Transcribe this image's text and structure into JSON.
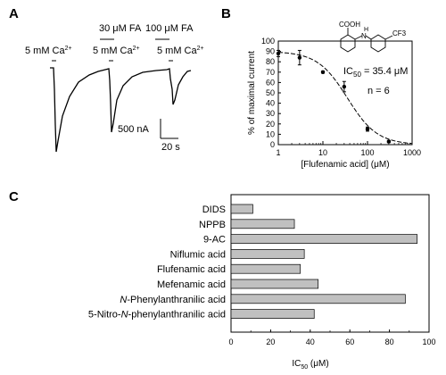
{
  "panel_a": {
    "letter": "A",
    "labels": {
      "ca1": "5 mM Ca",
      "ca1_sup": "2+",
      "fa30": "30 μM FA",
      "ca2": "5 mM Ca",
      "ca2_sup": "2+",
      "fa100": "100 μM FA",
      "ca3": "5 mM Ca",
      "ca3_sup": "2+"
    },
    "scale": {
      "current": "500 nA",
      "time": "20 s"
    }
  },
  "panel_b": {
    "letter": "B",
    "structure_labels": {
      "cooh": "COOH",
      "nh": "H",
      "n": "N",
      "cf3": "CF3"
    },
    "ic50_prefix": "IC",
    "ic50_sub": "50",
    "ic50_value": " = 35.4 μM",
    "n_text": "n = 6"
  },
  "panel_c": {
    "letter": "C",
    "xlabel_prefix": "IC",
    "xlabel_sub": "50",
    "xlabel_unit": " (μM)"
  },
  "chart_data": [
    {
      "type": "scatter",
      "panel": "B",
      "xlabel": "[Flufenamic acid] (μM)",
      "ylabel": "% of maximal current",
      "x_scale": "log",
      "xlim": [
        1,
        1000
      ],
      "ylim": [
        0,
        100
      ],
      "x_ticks": [
        1,
        10,
        100,
        1000
      ],
      "x_tick_labels": [
        "1",
        "10",
        "100",
        "1000"
      ],
      "y_ticks": [
        0,
        10,
        20,
        30,
        40,
        50,
        60,
        70,
        80,
        90,
        100
      ],
      "y_tick_labels": [
        "0",
        "10",
        "20",
        "30",
        "40",
        "50",
        "60",
        "70",
        "80",
        "90",
        "100"
      ],
      "points": [
        {
          "x": 1,
          "y": 88,
          "err": 3
        },
        {
          "x": 3,
          "y": 84,
          "err": 7
        },
        {
          "x": 10,
          "y": 70,
          "err": 1
        },
        {
          "x": 30,
          "y": 56,
          "err": 5
        },
        {
          "x": 100,
          "y": 15,
          "err": 2
        },
        {
          "x": 300,
          "y": 3,
          "err": 1
        }
      ],
      "fit": {
        "top": 90,
        "bottom": 0,
        "ic50": 35.4,
        "hill": 1.3
      }
    },
    {
      "type": "bar",
      "panel": "C",
      "orientation": "horizontal",
      "categories": [
        "DIDS",
        "NPPB",
        "9-AC",
        "Niflumic acid",
        "Flufenamic acid",
        "Mefenamic acid",
        "N-Phenylanthranilic acid",
        "5-Nitro-N-phenylanthranilic acid"
      ],
      "values": [
        11,
        32,
        94,
        37,
        35,
        44,
        88,
        42
      ],
      "xlim": [
        0,
        100
      ],
      "x_ticks": [
        0,
        20,
        40,
        60,
        80,
        100
      ],
      "x_tick_labels": [
        "0",
        "20",
        "40",
        "60",
        "80",
        "100"
      ],
      "xlabel": "IC50 (μM)",
      "bar_color": "#c0c0c0"
    }
  ]
}
